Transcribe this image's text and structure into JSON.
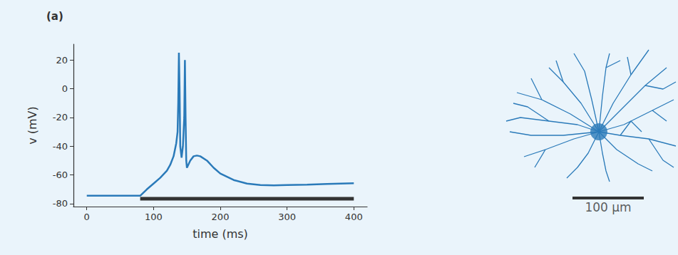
{
  "panel_label": "(a)",
  "chart_data": [
    {
      "type": "line",
      "x_label": "time (ms)",
      "y_label": "v (mV)",
      "color": "#2a7ab9",
      "x": [
        0,
        80,
        90,
        100,
        110,
        120,
        125,
        130,
        134,
        136,
        137,
        138,
        139,
        140,
        142,
        144,
        146,
        147,
        148,
        149,
        150,
        152,
        155,
        160,
        165,
        170,
        180,
        190,
        200,
        220,
        240,
        260,
        280,
        300,
        330,
        360,
        400
      ],
      "values": [
        -74.5,
        -74.5,
        -70,
        -66,
        -62,
        -57,
        -53,
        -47,
        -38,
        -30,
        -10,
        25,
        0,
        -40,
        -48,
        -40,
        -20,
        20,
        -20,
        -50,
        -55,
        -53,
        -50,
        -47,
        -46.5,
        -47,
        -50,
        -55,
        -59,
        -63.5,
        -66,
        -67,
        -67.2,
        -67,
        -66.7,
        -66.3,
        -65.8
      ],
      "stimulus": {
        "start": 80,
        "end": 400,
        "level": -76.5,
        "color": "#333333"
      },
      "xlim": [
        -20,
        420
      ],
      "xticks": [
        0,
        100,
        200,
        300,
        400
      ],
      "ylim": [
        -82,
        31
      ],
      "yticks": [
        -80,
        -60,
        -40,
        -20,
        0,
        20
      ],
      "grid": false
    },
    {
      "type": "morphology",
      "color": "#2a7ab9",
      "xlim": [
        -140,
        110
      ],
      "ylim": [
        -115,
        125
      ],
      "tick_labels": false,
      "soma": {
        "x": 0,
        "y": 0,
        "diameter": 24
      },
      "branches": [
        [
          [
            0,
            0
          ],
          [
            -30,
            10
          ],
          [
            -70,
            15
          ],
          [
            -110,
            20
          ],
          [
            -130,
            15
          ]
        ],
        [
          [
            0,
            0
          ],
          [
            -40,
            25
          ],
          [
            -80,
            45
          ],
          [
            -115,
            55
          ]
        ],
        [
          [
            0,
            0
          ],
          [
            -25,
            40
          ],
          [
            -50,
            70
          ],
          [
            -70,
            90
          ]
        ],
        [
          [
            0,
            0
          ],
          [
            -10,
            45
          ],
          [
            -20,
            85
          ],
          [
            -35,
            110
          ]
        ],
        [
          [
            0,
            0
          ],
          [
            5,
            50
          ],
          [
            10,
            90
          ],
          [
            15,
            110
          ]
        ],
        [
          [
            0,
            0
          ],
          [
            20,
            40
          ],
          [
            45,
            80
          ],
          [
            70,
            115
          ]
        ],
        [
          [
            0,
            0
          ],
          [
            30,
            30
          ],
          [
            65,
            65
          ],
          [
            95,
            90
          ]
        ],
        [
          [
            0,
            0
          ],
          [
            35,
            10
          ],
          [
            75,
            30
          ],
          [
            105,
            45
          ]
        ],
        [
          [
            0,
            0
          ],
          [
            30,
            -5
          ],
          [
            70,
            -10
          ],
          [
            108,
            -20
          ]
        ],
        [
          [
            0,
            0
          ],
          [
            25,
            -25
          ],
          [
            55,
            -45
          ],
          [
            75,
            -55
          ]
        ],
        [
          [
            0,
            0
          ],
          [
            5,
            -30
          ],
          [
            10,
            -55
          ],
          [
            15,
            -70
          ]
        ],
        [
          [
            0,
            0
          ],
          [
            -15,
            -30
          ],
          [
            -30,
            -50
          ],
          [
            -45,
            -65
          ]
        ],
        [
          [
            0,
            0
          ],
          [
            -35,
            -10
          ],
          [
            -75,
            -25
          ],
          [
            -105,
            -35
          ]
        ],
        [
          [
            0,
            0
          ],
          [
            -50,
            -5
          ],
          [
            -95,
            -5
          ],
          [
            -125,
            0
          ]
        ],
        [
          [
            -70,
            15
          ],
          [
            -100,
            35
          ],
          [
            -120,
            40
          ]
        ],
        [
          [
            -50,
            70
          ],
          [
            -60,
            100
          ]
        ],
        [
          [
            45,
            80
          ],
          [
            40,
            105
          ]
        ],
        [
          [
            65,
            65
          ],
          [
            90,
            60
          ],
          [
            108,
            70
          ]
        ],
        [
          [
            75,
            30
          ],
          [
            95,
            15
          ]
        ],
        [
          [
            70,
            -10
          ],
          [
            90,
            -40
          ],
          [
            105,
            -50
          ]
        ],
        [
          [
            -75,
            -25
          ],
          [
            -90,
            -50
          ]
        ],
        [
          [
            10,
            90
          ],
          [
            30,
            100
          ]
        ],
        [
          [
            -80,
            45
          ],
          [
            -95,
            75
          ]
        ],
        [
          [
            30,
            -5
          ],
          [
            45,
            15
          ],
          [
            60,
            0
          ]
        ]
      ],
      "scale_bar": {
        "x": -37,
        "y": -93,
        "length": 100,
        "label": "100 µm",
        "color": "#333333"
      }
    }
  ]
}
